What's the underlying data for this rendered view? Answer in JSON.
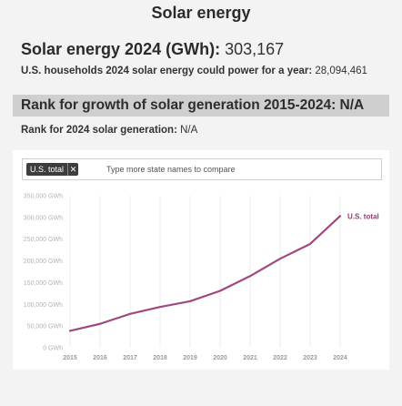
{
  "page": {
    "title": "Solar energy"
  },
  "stats": {
    "solar_label": "Solar energy 2024 (GWh):",
    "solar_value": "303,167",
    "households_label": "U.S. households 2024 solar energy could power for a year:",
    "households_value": "28,094,461",
    "rank_growth_text": "Rank for growth of solar generation 2015-2024: N/A",
    "rank_2024_label": "Rank for 2024 solar generation:",
    "rank_2024_value": "N/A"
  },
  "search": {
    "selected_tag": "U.S. total",
    "remove_glyph": "✕",
    "placeholder": "Type more state names to compare"
  },
  "colors": {
    "series": "#a0487f"
  },
  "chart_data": {
    "type": "line",
    "x": [
      "2015",
      "2016",
      "2017",
      "2018",
      "2019",
      "2020",
      "2021",
      "2022",
      "2023",
      "2024"
    ],
    "y_ticks": [
      "0 GWh",
      "50,000 GWh",
      "100,000 GWh",
      "150,000 GWh",
      "200,000 GWh",
      "250,000 GWh",
      "300,000 GWh",
      "350,000 GWh"
    ],
    "ylim": [
      0,
      350000
    ],
    "series": [
      {
        "name": "U.S. total",
        "values": [
          39000,
          55000,
          78000,
          94000,
          107000,
          131000,
          165000,
          205000,
          239000,
          303167
        ]
      }
    ],
    "grid": "vertical"
  }
}
